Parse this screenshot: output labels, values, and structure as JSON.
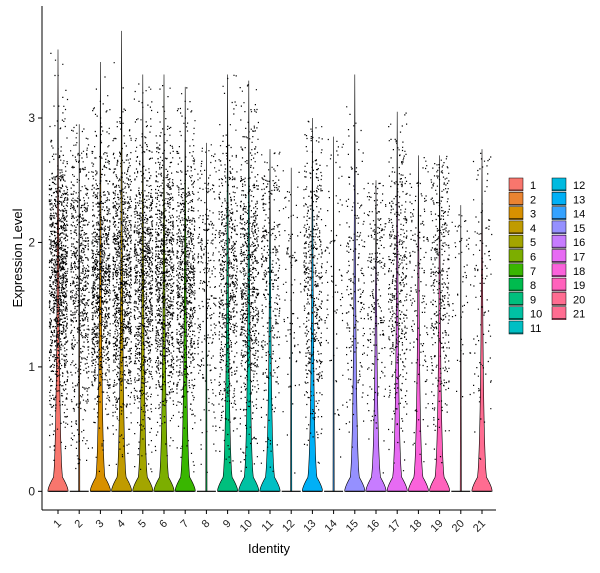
{
  "chart_data": {
    "type": "violin",
    "title": "",
    "xlabel": "Identity",
    "ylabel": "Expression Level",
    "ylim": [
      -0.15,
      3.9
    ],
    "yticks": [
      0,
      1,
      2,
      3
    ],
    "grid": false,
    "legend_position": "right",
    "legend_columns": 2,
    "categories": [
      "1",
      "2",
      "3",
      "4",
      "5",
      "6",
      "7",
      "8",
      "9",
      "10",
      "11",
      "12",
      "13",
      "14",
      "15",
      "16",
      "17",
      "18",
      "19",
      "20",
      "21"
    ],
    "colors": [
      "#F8766D",
      "#EA8331",
      "#D89000",
      "#C09B00",
      "#A3A500",
      "#7CAE00",
      "#39B600",
      "#00BB4E",
      "#00BF7D",
      "#00C1A3",
      "#00BFC4",
      "#00BAE0",
      "#00B0F6",
      "#35A2FF",
      "#9590FF",
      "#C77CFF",
      "#E76BF3",
      "#FA62DB",
      "#FF62BC",
      "#FF6C91",
      "#FF6C91"
    ],
    "series": [
      {
        "name": "1",
        "max": 3.55,
        "zero_width": 0.22,
        "density": 1.0,
        "spread": "high"
      },
      {
        "name": "2",
        "max": 2.95,
        "zero_width": 0.0,
        "density": 0.6,
        "spread": "mid"
      },
      {
        "name": "3",
        "max": 3.45,
        "zero_width": 0.22,
        "density": 0.85,
        "spread": "high"
      },
      {
        "name": "4",
        "max": 3.7,
        "zero_width": 0.22,
        "density": 0.9,
        "spread": "high"
      },
      {
        "name": "5",
        "max": 3.35,
        "zero_width": 0.22,
        "density": 0.85,
        "spread": "high"
      },
      {
        "name": "6",
        "max": 3.35,
        "zero_width": 0.22,
        "density": 0.85,
        "spread": "high"
      },
      {
        "name": "7",
        "max": 3.25,
        "zero_width": 0.22,
        "density": 0.75,
        "spread": "high"
      },
      {
        "name": "8",
        "max": 2.8,
        "zero_width": 0.0,
        "density": 0.25,
        "spread": "mid"
      },
      {
        "name": "9",
        "max": 3.35,
        "zero_width": 0.22,
        "density": 0.55,
        "spread": "mid"
      },
      {
        "name": "10",
        "max": 3.3,
        "zero_width": 0.22,
        "density": 0.65,
        "spread": "mid"
      },
      {
        "name": "11",
        "max": 2.75,
        "zero_width": 0.22,
        "density": 0.3,
        "spread": "mid"
      },
      {
        "name": "12",
        "max": 2.6,
        "zero_width": 0.0,
        "density": 0.08,
        "spread": "mid"
      },
      {
        "name": "13",
        "max": 3.0,
        "zero_width": 0.22,
        "density": 0.45,
        "spread": "mid"
      },
      {
        "name": "14",
        "max": 2.85,
        "zero_width": 0.0,
        "density": 0.08,
        "spread": "mid"
      },
      {
        "name": "15",
        "max": 3.35,
        "zero_width": 0.22,
        "density": 0.18,
        "spread": "mid"
      },
      {
        "name": "16",
        "max": 2.5,
        "zero_width": 0.22,
        "density": 0.2,
        "spread": "mid"
      },
      {
        "name": "17",
        "max": 3.05,
        "zero_width": 0.22,
        "density": 0.4,
        "spread": "mid"
      },
      {
        "name": "18",
        "max": 2.7,
        "zero_width": 0.22,
        "density": 0.15,
        "spread": "mid"
      },
      {
        "name": "19",
        "max": 2.7,
        "zero_width": 0.22,
        "density": 0.35,
        "spread": "mid"
      },
      {
        "name": "20",
        "max": 2.3,
        "zero_width": 0.0,
        "density": 0.05,
        "spread": "mid"
      },
      {
        "name": "21",
        "max": 2.75,
        "zero_width": 0.22,
        "density": 0.1,
        "spread": "mid"
      }
    ]
  }
}
